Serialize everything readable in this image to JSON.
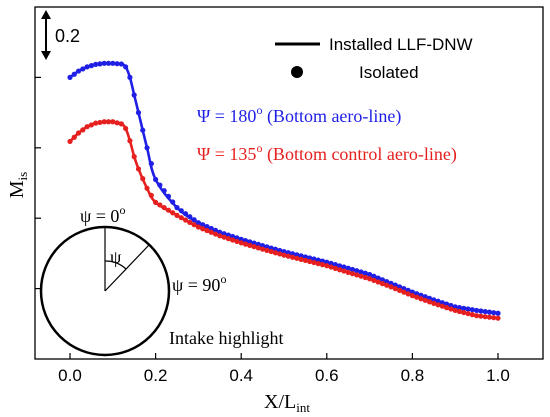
{
  "chart_data": {
    "type": "line",
    "xlabel": "X/L",
    "xlabel_sub": "int",
    "ylabel": "M",
    "ylabel_sub": "is",
    "xlim": [
      -0.1,
      1.05
    ],
    "x_ticks": [
      0.0,
      0.2,
      0.4,
      0.6,
      0.8,
      1.0
    ],
    "x_tick_labels": [
      "0.0",
      "0.2",
      "0.4",
      "0.6",
      "0.8",
      "1.0"
    ],
    "y_scale_label": "0.2",
    "y_scale_value": 0.2,
    "ylim": [
      0.0,
      1.0
    ],
    "grid": false,
    "legend": {
      "placement": "top-right",
      "entries": [
        {
          "label": "Installed LLF-DNW",
          "marker": "line"
        },
        {
          "label": "Isolated",
          "marker": "dot"
        }
      ]
    },
    "series": [
      {
        "name": "Ψ = 180° (Bottom aero-line)",
        "label_symbol": "Ψ",
        "label_eq": " = 180",
        "label_sup": "o",
        "label_tail": " (Bottom aero-line)",
        "color": "#1f1fe6",
        "x": [
          0.0,
          0.02,
          0.04,
          0.06,
          0.08,
          0.1,
          0.12,
          0.13,
          0.14,
          0.15,
          0.16,
          0.18,
          0.2,
          0.25,
          0.3,
          0.35,
          0.4,
          0.45,
          0.5,
          0.55,
          0.6,
          0.65,
          0.7,
          0.75,
          0.8,
          0.85,
          0.9,
          0.95,
          1.0
        ],
        "y": [
          0.8,
          0.818,
          0.83,
          0.837,
          0.84,
          0.84,
          0.838,
          0.83,
          0.8,
          0.75,
          0.7,
          0.6,
          0.51,
          0.43,
          0.387,
          0.36,
          0.34,
          0.322,
          0.305,
          0.29,
          0.275,
          0.258,
          0.24,
          0.215,
          0.19,
          0.168,
          0.148,
          0.138,
          0.13
        ]
      },
      {
        "name": "Ψ = 135° (Bottom control aero-line)",
        "label_symbol": "Ψ",
        "label_eq": " = 135",
        "label_sup": "o",
        "label_tail": " (Bottom control aero-line)",
        "color": "#e61f1f",
        "x": [
          0.0,
          0.02,
          0.04,
          0.06,
          0.08,
          0.1,
          0.12,
          0.13,
          0.14,
          0.15,
          0.16,
          0.18,
          0.2,
          0.25,
          0.3,
          0.35,
          0.4,
          0.45,
          0.5,
          0.55,
          0.6,
          0.65,
          0.7,
          0.75,
          0.8,
          0.85,
          0.9,
          0.95,
          1.0
        ],
        "y": [
          0.618,
          0.642,
          0.66,
          0.67,
          0.674,
          0.674,
          0.668,
          0.655,
          0.62,
          0.575,
          0.54,
          0.485,
          0.445,
          0.408,
          0.375,
          0.35,
          0.33,
          0.312,
          0.295,
          0.28,
          0.265,
          0.246,
          0.228,
          0.205,
          0.18,
          0.158,
          0.138,
          0.123,
          0.116
        ]
      }
    ],
    "inset": {
      "psi_top_symbol": "ψ",
      "psi_top_eq": " = 0",
      "psi_top_sup": "o",
      "psi_angle_symbol": "ψ",
      "psi_right_symbol": "ψ",
      "psi_right_eq": " = 90",
      "psi_right_sup": "o",
      "caption": "Intake highlight"
    }
  }
}
